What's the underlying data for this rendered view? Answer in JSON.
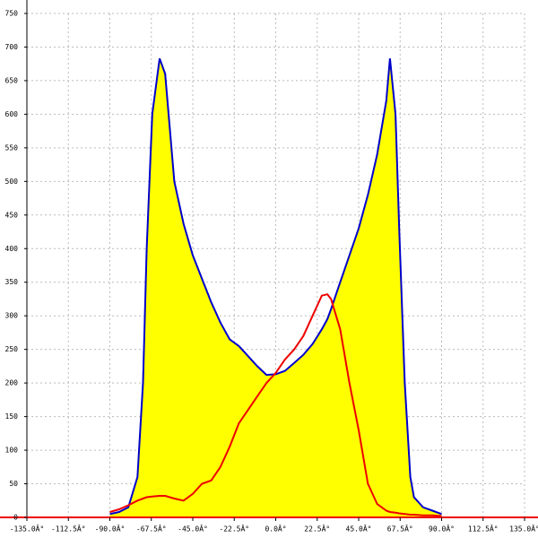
{
  "chart_data": {
    "type": "area",
    "x": [
      -90,
      -85,
      -80,
      -75,
      -72,
      -70,
      -67,
      -63,
      -60,
      -55,
      -50,
      -45,
      -40,
      -35,
      -30,
      -25,
      -20,
      -15,
      -10,
      -5,
      0,
      5,
      10,
      15,
      20,
      25,
      28,
      30,
      35,
      40,
      45,
      50,
      55,
      60,
      62,
      65,
      67,
      70,
      73,
      75,
      80,
      85,
      90
    ],
    "series": [
      {
        "color": "#0000cc",
        "fill": "#ffff00",
        "values": [
          5,
          8,
          15,
          60,
          200,
          400,
          600,
          683,
          660,
          500,
          437,
          390,
          355,
          320,
          290,
          265,
          255,
          240,
          225,
          212,
          213,
          218,
          230,
          242,
          258,
          280,
          295,
          310,
          350,
          390,
          430,
          480,
          540,
          620,
          683,
          600,
          430,
          200,
          60,
          30,
          15,
          10,
          5
        ]
      },
      {
        "color": "#ee0000",
        "values": [
          8,
          12,
          18,
          25,
          28,
          30,
          31,
          32,
          32,
          28,
          25,
          35,
          50,
          55,
          75,
          105,
          140,
          160,
          180,
          200,
          215,
          235,
          250,
          270,
          300,
          330,
          332,
          325,
          280,
          200,
          130,
          50,
          20,
          10,
          8,
          7,
          6,
          5,
          4,
          4,
          3,
          3,
          2
        ]
      }
    ],
    "xlim": [
      -135,
      135
    ],
    "xticks": [
      {
        "value": -135,
        "label": "-135.0Â°"
      },
      {
        "value": -112.5,
        "label": "-112.5Â°"
      },
      {
        "value": -90,
        "label": "-90.0Â°"
      },
      {
        "value": -67.5,
        "label": "-67.5Â°"
      },
      {
        "value": -45,
        "label": "-45.0Â°"
      },
      {
        "value": -22.5,
        "label": "-22.5Â°"
      },
      {
        "value": 0,
        "label": "0.0Â°"
      },
      {
        "value": 22.5,
        "label": "22.5Â°"
      },
      {
        "value": 45,
        "label": "45.0Â°"
      },
      {
        "value": 67.5,
        "label": "67.5Â°"
      },
      {
        "value": 90,
        "label": "90.0Â°"
      },
      {
        "value": 112.5,
        "label": "112.5Â°"
      },
      {
        "value": 135,
        "label": "135.0Â°"
      }
    ],
    "ylim": [
      0,
      750
    ],
    "yticks": [
      0,
      50,
      100,
      150,
      200,
      250,
      300,
      350,
      400,
      450,
      500,
      550,
      600,
      650,
      700,
      750
    ],
    "grid": true
  }
}
